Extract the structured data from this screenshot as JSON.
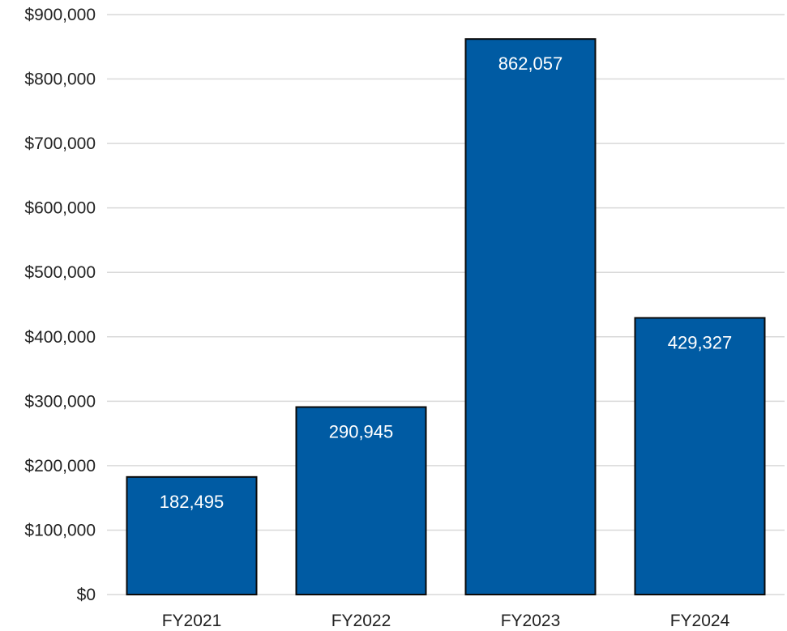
{
  "colors": {
    "bar_fill": "#005BA3",
    "bar_stroke": "#0A0A0A",
    "gridline": "#D9D9D9",
    "axis_text": "#222222",
    "data_label_text": "#FFFFFF"
  },
  "chart_data": {
    "type": "bar",
    "title": "",
    "xlabel": "",
    "ylabel": "",
    "categories": [
      "FY2021",
      "FY2022",
      "FY2023",
      "FY2024"
    ],
    "values": [
      182495,
      290945,
      862057,
      429327
    ],
    "data_labels": [
      "182,495",
      "290,945",
      "862,057",
      "429,327"
    ],
    "ylim": [
      0,
      900000
    ],
    "y_ticks": [
      {
        "value": 0,
        "label": "$0"
      },
      {
        "value": 100000,
        "label": "$100,000"
      },
      {
        "value": 200000,
        "label": "$200,000"
      },
      {
        "value": 300000,
        "label": "$300,000"
      },
      {
        "value": 400000,
        "label": "$400,000"
      },
      {
        "value": 500000,
        "label": "$500,000"
      },
      {
        "value": 600000,
        "label": "$600,000"
      },
      {
        "value": 700000,
        "label": "$700,000"
      },
      {
        "value": 800000,
        "label": "$800,000"
      },
      {
        "value": 900000,
        "label": "$900,000"
      }
    ],
    "grid": true,
    "legend": "none"
  }
}
